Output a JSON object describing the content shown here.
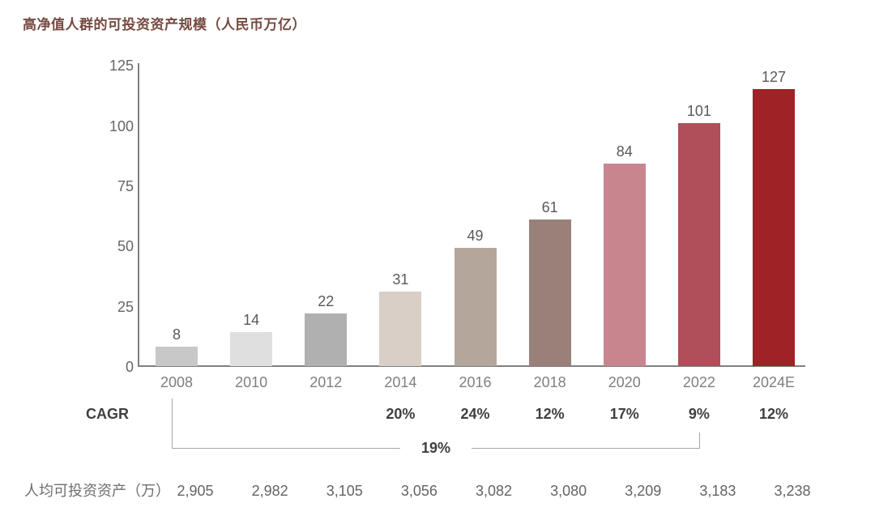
{
  "title": "高净值人群的可投资资产规模（人民币万亿）",
  "chart_data": {
    "type": "bar",
    "title": "高净值人群的可投资资产规模（人民币万亿）",
    "categories": [
      "2008",
      "2010",
      "2012",
      "2014",
      "2016",
      "2018",
      "2020",
      "2022",
      "2024E"
    ],
    "values": [
      8,
      14,
      22,
      31,
      49,
      61,
      84,
      101,
      127
    ],
    "bar_heights_as_drawn": [
      8,
      14,
      22,
      31,
      49,
      61,
      84,
      101,
      115
    ],
    "bar_colors": [
      "#c8c8c8",
      "#dfdfdf",
      "#b0b0b0",
      "#d9cfc6",
      "#b4a69b",
      "#998179",
      "#c8858e",
      "#b04f5a",
      "#9e2226"
    ],
    "xlabel": "",
    "ylabel": "",
    "ylim": [
      0,
      125
    ],
    "yticks": [
      0,
      25,
      50,
      75,
      100,
      125
    ],
    "grid": false,
    "legend": false,
    "data_labels": true
  },
  "cagr": {
    "label": "CAGR",
    "values_by_category": [
      "",
      "",
      "",
      "20%",
      "24%",
      "12%",
      "17%",
      "9%",
      "12%"
    ],
    "overall": {
      "value": "19%",
      "from": "2008",
      "to": "2022"
    }
  },
  "per_capita": {
    "label": "人均可投资资产（万）",
    "values": [
      "2,905",
      "2,982",
      "3,105",
      "3,056",
      "3,082",
      "3,080",
      "3,209",
      "3,183",
      "3,238"
    ]
  },
  "colors": {
    "title_text": "#754a41",
    "axis_line": "#808080",
    "bracket_line": "#a6a6a6",
    "value_text": "#595959",
    "year_text": "#7f7f7f",
    "cagr_text": "#3f3f3f",
    "per_capita_text": "#646464"
  }
}
